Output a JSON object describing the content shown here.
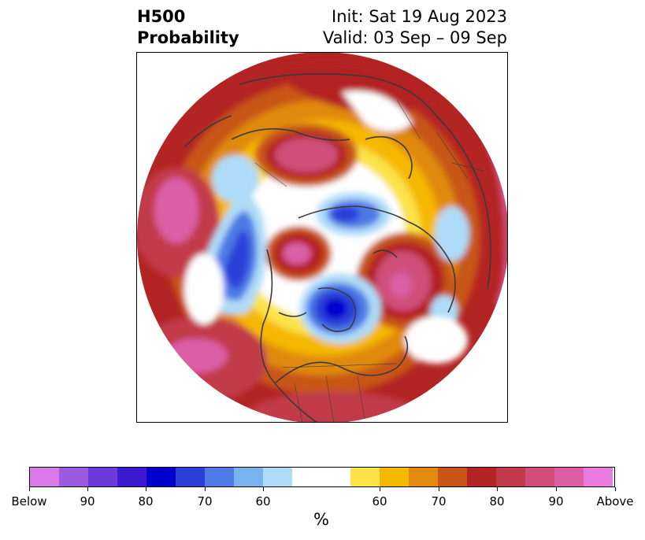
{
  "title": {
    "left_line1": "H500",
    "left_line2": "Probability",
    "right_line1": "Init: Sat 19 Aug 2023",
    "right_line2": "Valid: 03 Sep – 09 Sep"
  },
  "colorbar": {
    "colors": [
      "#d97ae8",
      "#9b5ae0",
      "#6b3ad8",
      "#3c1ad0",
      "#0000cd",
      "#2a3fd8",
      "#4e79e6",
      "#7ab2f0",
      "#aedcf8",
      "#ffffff",
      "#ffffff",
      "#fde24a",
      "#f5b800",
      "#e08a10",
      "#c85618",
      "#b32424",
      "#c23a4a",
      "#cf4f7a",
      "#dc5fa6",
      "#e87ae0"
    ],
    "labels": [
      "Below",
      "90",
      "80",
      "70",
      "60",
      "60",
      "70",
      "80",
      "90",
      "Above"
    ],
    "unit": "%"
  },
  "map": {
    "projection": "north-polar-stereographic",
    "variable": "500 hPa height anomaly probability"
  }
}
